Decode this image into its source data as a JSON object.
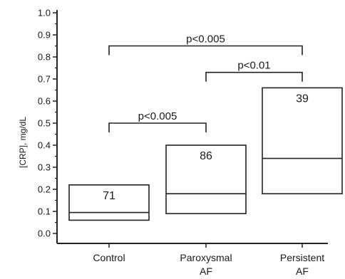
{
  "chart_data": {
    "type": "box",
    "ylabel": "[CRP], mg/dL",
    "ylim": [
      0,
      1.0
    ],
    "yticks": [
      0.0,
      0.1,
      0.2,
      0.3,
      0.4,
      0.5,
      0.6,
      0.7,
      0.8,
      0.9,
      1.0
    ],
    "ytick_labels": [
      "0.0",
      "0.1",
      "0.2",
      "0.3",
      "0.4",
      "0.5",
      "0.6",
      "0.7",
      "0.8",
      "0.9",
      "1.0"
    ],
    "grid": false,
    "categories": [
      {
        "line1": "Control",
        "line2": ""
      },
      {
        "line1": "Paroxysmal",
        "line2": "AF"
      },
      {
        "line1": "Persistent",
        "line2": "AF"
      }
    ],
    "boxes": [
      {
        "q1": 0.06,
        "median": 0.095,
        "q3": 0.22,
        "n": "71"
      },
      {
        "q1": 0.09,
        "median": 0.18,
        "q3": 0.4,
        "n": "86"
      },
      {
        "q1": 0.18,
        "median": 0.34,
        "q3": 0.66,
        "n": "39"
      }
    ],
    "comparisons": [
      {
        "from": 0,
        "to": 1,
        "y": 0.5,
        "label": "p<0.005"
      },
      {
        "from": 1,
        "to": 2,
        "y": 0.73,
        "label": "p<0.01"
      },
      {
        "from": 0,
        "to": 2,
        "y": 0.85,
        "label": "p<0.005"
      }
    ]
  }
}
